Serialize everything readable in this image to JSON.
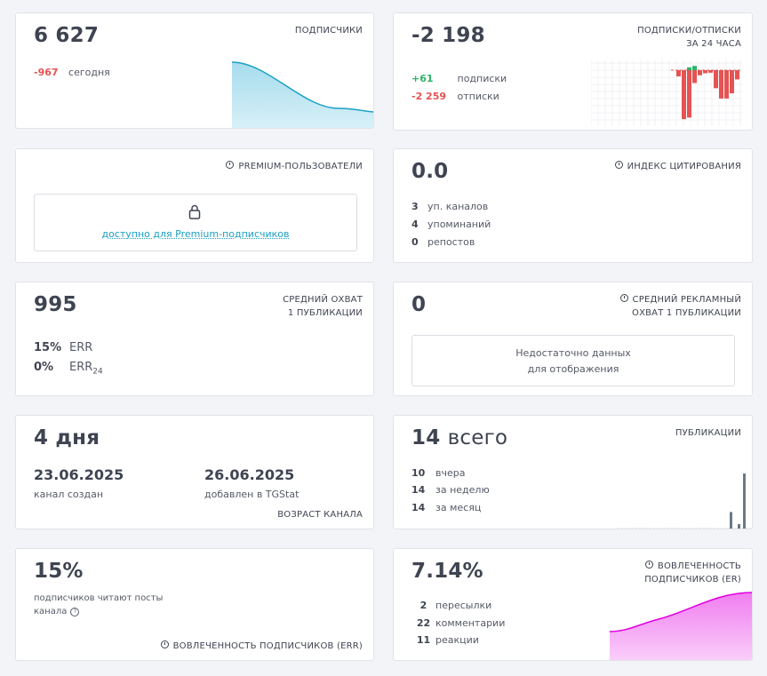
{
  "subscribers": {
    "value": "6 627",
    "title": "ПОДПИСЧИКИ",
    "today_value": "-967",
    "today_label": "сегодня"
  },
  "subs_24h": {
    "value": "-2 198",
    "title_line1": "ПОДПИСКИ/ОТПИСКИ",
    "title_line2": "ЗА 24 ЧАСА",
    "subs_value": "+61",
    "subs_label": "подписки",
    "unsubs_value": "-2 259",
    "unsubs_label": "отписки",
    "bars": [
      -0.12,
      -0.95,
      -0.92,
      -0.25,
      -0.1,
      -0.06,
      -0.05,
      -0.35,
      -0.55,
      -0.55,
      -0.45,
      -0.18
    ],
    "positive_bars": [
      0.08,
      0.12
    ]
  },
  "premium": {
    "title": "PREMIUM-ПОЛЬЗОВАТЕЛИ",
    "link": "доступно для Premium-подписчиков"
  },
  "citation": {
    "value": "0.0",
    "title": "ИНДЕКС ЦИТИРОВАНИЯ",
    "rows": [
      {
        "num": "3",
        "label": "уп. каналов"
      },
      {
        "num": "4",
        "label": "упоминаний"
      },
      {
        "num": "0",
        "label": "репостов"
      }
    ]
  },
  "reach": {
    "value": "995",
    "title_line1": "СРЕДНИЙ ОХВАТ",
    "title_line2": "1 ПУБЛИКАЦИИ",
    "err_value": "15%",
    "err_label": "ERR",
    "err24_value": "0%",
    "err24_label": "ERR",
    "err24_sub": "24"
  },
  "ad_reach": {
    "value": "0",
    "title_line1": "СРЕДНИЙ РЕКЛАМНЫЙ",
    "title_line2": "ОХВАТ 1 ПУБЛИКАЦИИ",
    "message_line1": "Недостаточно данных",
    "message_line2": "для отображения"
  },
  "age": {
    "value": "4 дня",
    "created_date": "23.06.2025",
    "created_label": "канал создан",
    "added_date": "26.06.2025",
    "added_label": "добавлен в TGStat",
    "title": "ВОЗРАСТ КАНАЛА"
  },
  "publications": {
    "value": "14",
    "value_suffix": "всего",
    "title": "ПУБЛИКАЦИИ",
    "rows": [
      {
        "num": "10",
        "label": "вчера"
      },
      {
        "num": "14",
        "label": "за неделю"
      },
      {
        "num": "14",
        "label": "за месяц"
      }
    ],
    "bars": [
      0.3,
      0.08,
      1.0
    ]
  },
  "err": {
    "value": "15%",
    "desc_line1": "подписчиков читают посты",
    "desc_line2": "канала",
    "title": "ВОВЛЕЧЕННОСТЬ ПОДПИСЧИКОВ (ERR)"
  },
  "er": {
    "value": "7.14%",
    "title_line1": "ВОВЛЕЧЕННОСТЬ",
    "title_line2": "ПОДПИСЧИКОВ (ER)",
    "rows": [
      {
        "num": "2",
        "label": "пересылки"
      },
      {
        "num": "22",
        "label": "комментарии"
      },
      {
        "num": "11",
        "label": "реакции"
      }
    ]
  },
  "colors": {
    "red": "#e55353",
    "green": "#2db36a",
    "blue_line": "#1a9fc4",
    "pink_line": "#e000e0",
    "bar_gray": "#6b7a86"
  }
}
